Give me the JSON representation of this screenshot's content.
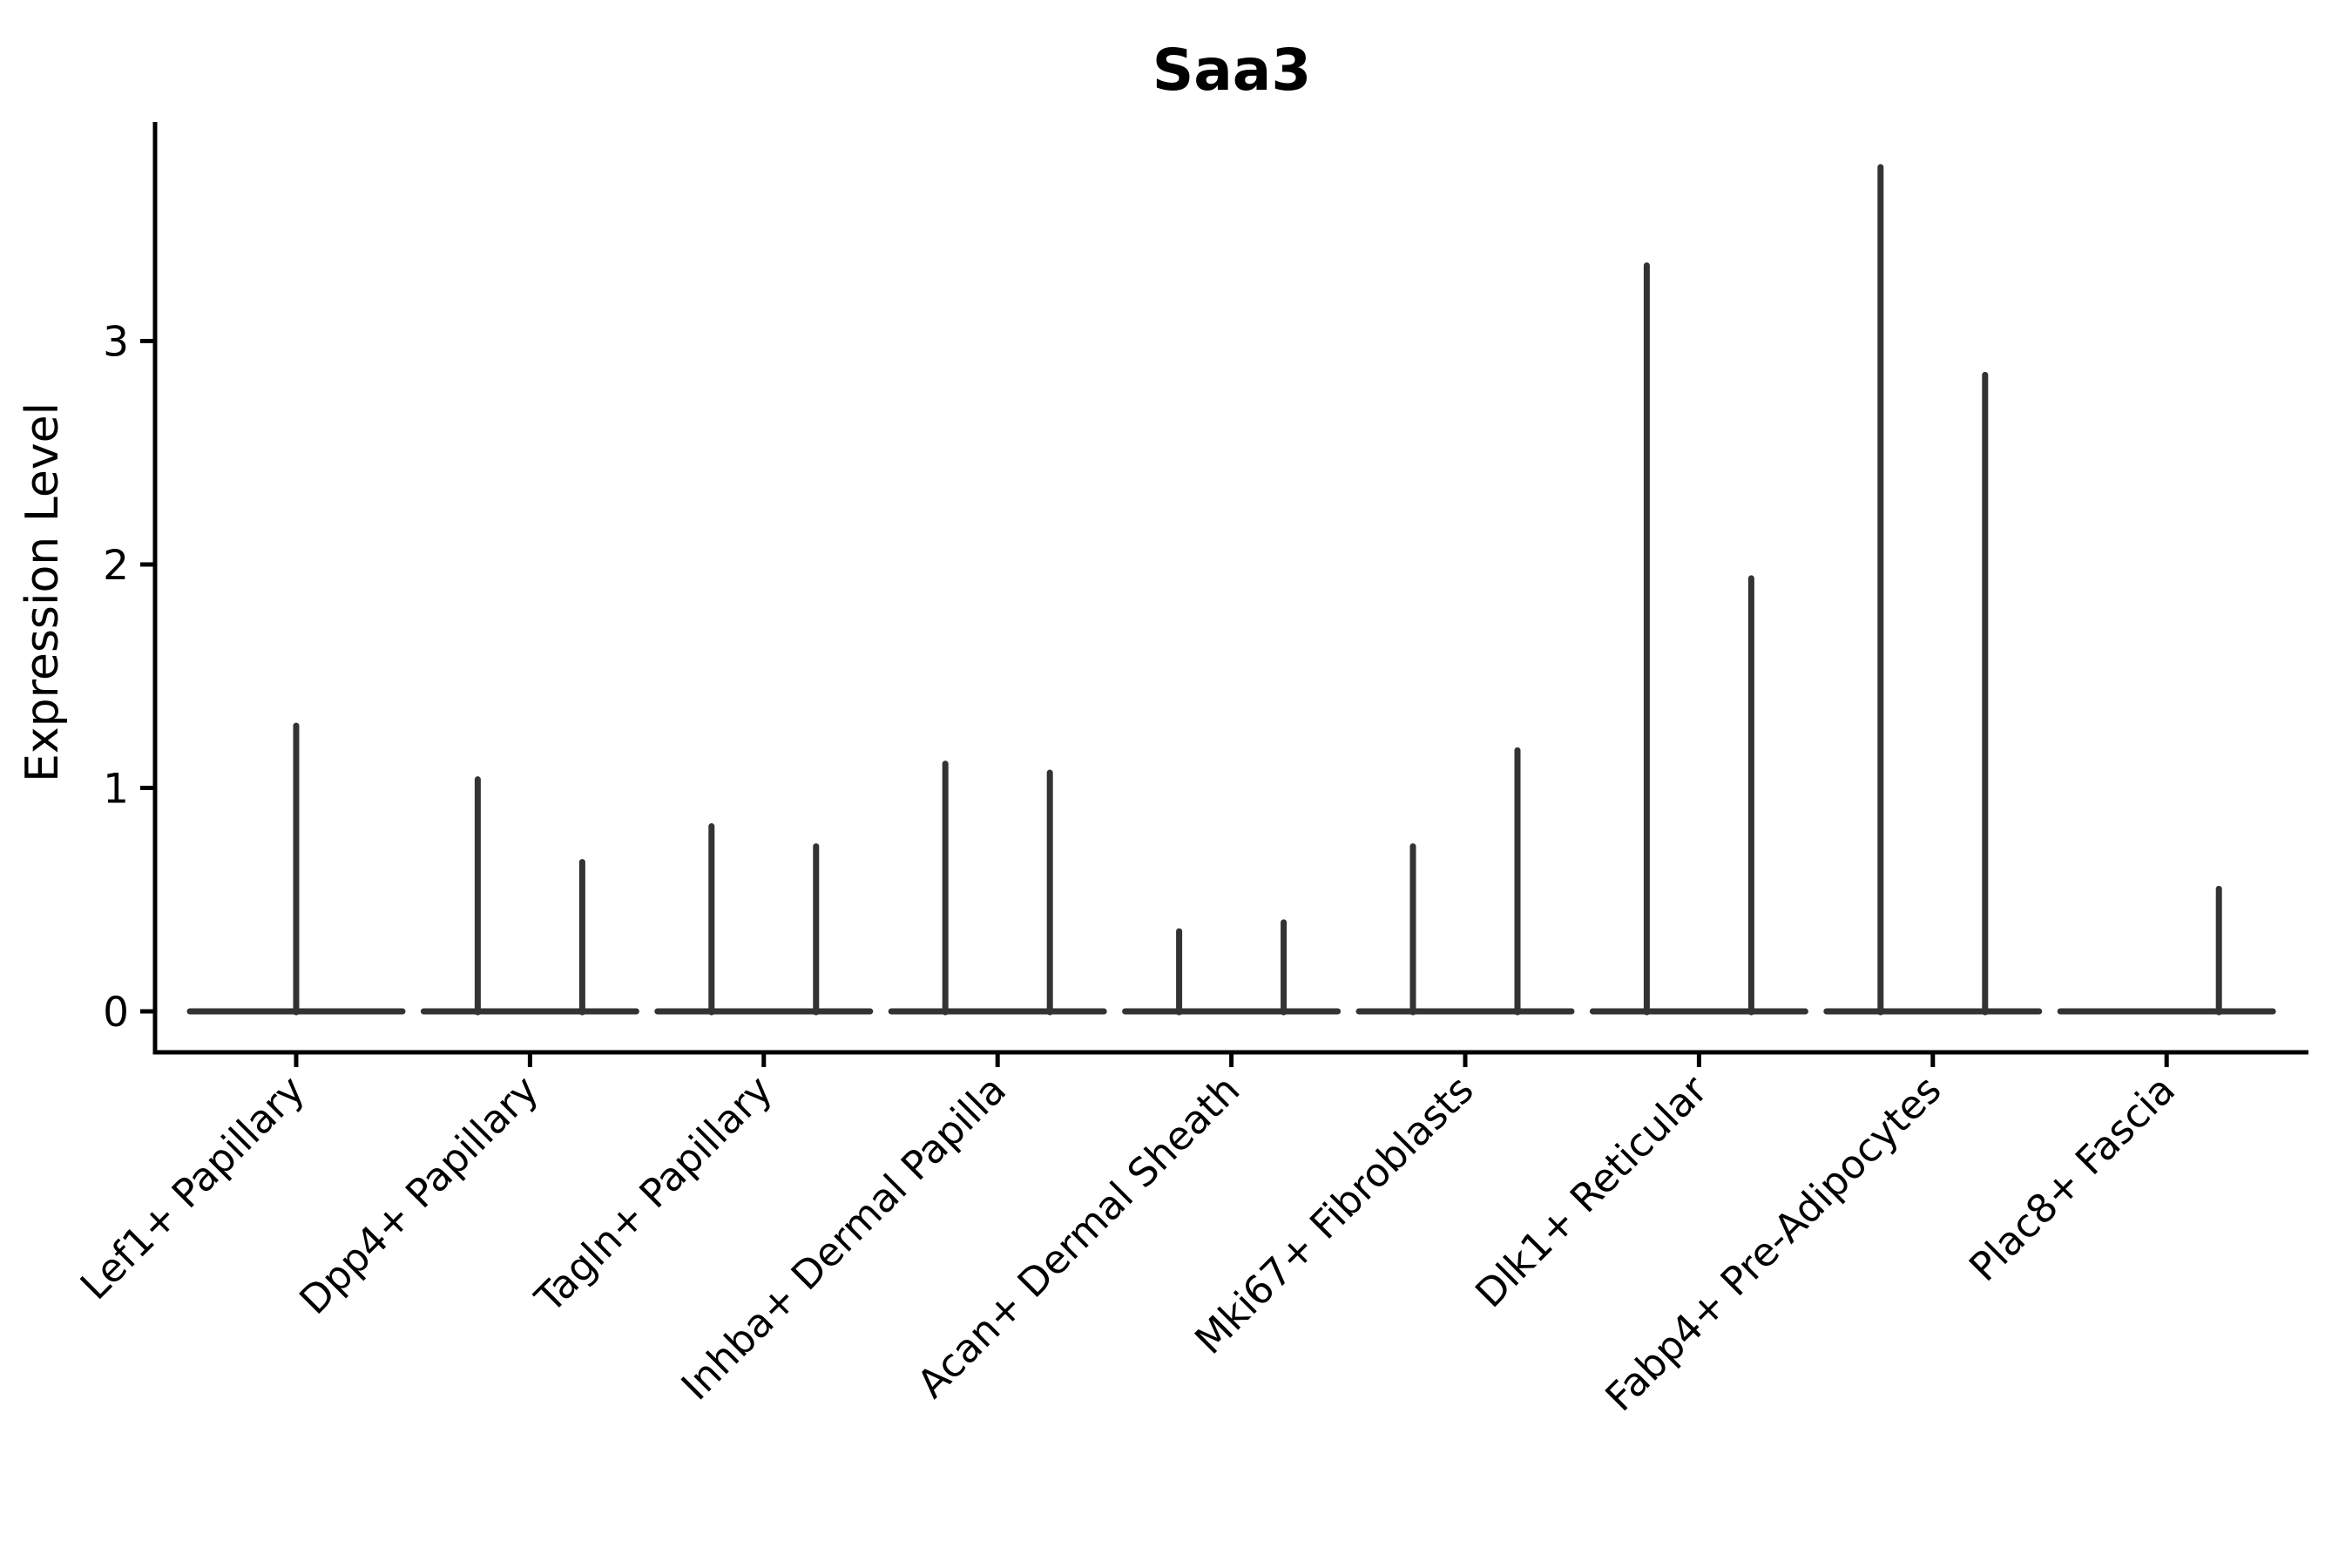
{
  "page": {
    "background_color": "#ffffff",
    "axis_color": "#000000",
    "violin_color": "#333333"
  },
  "chart_data": {
    "type": "violin",
    "title": "Saa3",
    "xlabel": "",
    "ylabel": "Expression Level",
    "yticks": [
      0,
      1,
      2,
      3
    ],
    "ylim": [
      -0.18,
      3.98
    ],
    "grid": false,
    "legend": null,
    "note": "Seurat-style violin plot; each cluster shows narrow spike violins (max expression) over a flat base at 0. Most clusters contain two violins (two sample groups); Lef1+ Papillary shows a single centered violin and Plac8+ Fascia's left violin is flat at 0.",
    "categories": [
      "Lef1+ Papillary",
      "Dpp4+ Papillary",
      "Tagln+ Papillary",
      "Inhba+ Dermal Papilla",
      "Acan+ Dermal Sheath",
      "Mki67+ Fibroblasts",
      "Dlk1+ Reticular",
      "Fabp4+ Pre-Adipocytes",
      "Plac8+ Fascia"
    ],
    "series": [
      {
        "category": "Lef1+ Papillary",
        "violin_max_expression": [
          1.29
        ]
      },
      {
        "category": "Dpp4+ Papillary",
        "violin_max_expression": [
          1.05,
          0.68
        ]
      },
      {
        "category": "Tagln+ Papillary",
        "violin_max_expression": [
          0.84,
          0.75
        ]
      },
      {
        "category": "Inhba+ Dermal Papilla",
        "violin_max_expression": [
          1.12,
          1.08
        ]
      },
      {
        "category": "Acan+ Dermal Sheath",
        "violin_max_expression": [
          0.37,
          0.41
        ]
      },
      {
        "category": "Mki67+ Fibroblasts",
        "violin_max_expression": [
          0.75,
          1.18
        ]
      },
      {
        "category": "Dlk1+ Reticular",
        "violin_max_expression": [
          3.35,
          1.95
        ]
      },
      {
        "category": "Fabp4+ Pre-Adipocytes",
        "violin_max_expression": [
          3.79,
          2.86
        ]
      },
      {
        "category": "Plac8+ Fascia",
        "violin_max_expression": [
          0.0,
          0.56
        ]
      }
    ]
  }
}
